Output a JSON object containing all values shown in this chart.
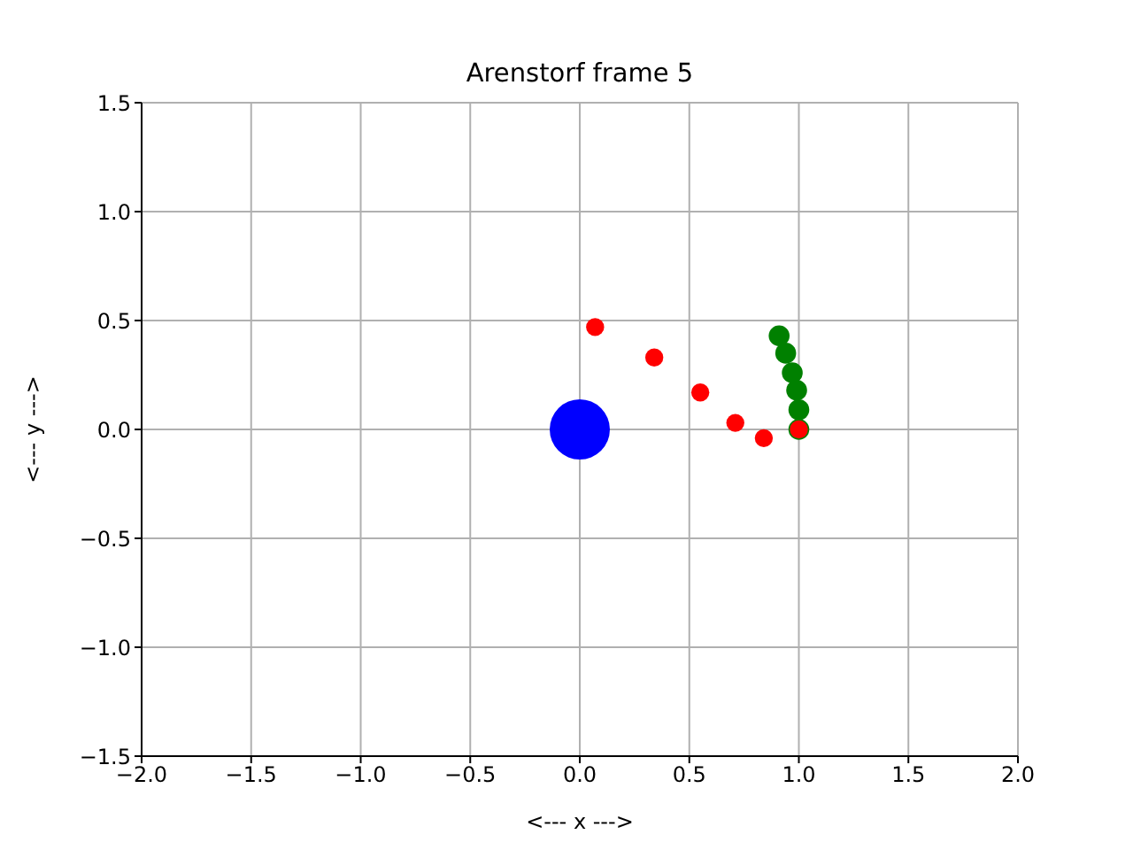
{
  "chart_data": {
    "type": "bubble",
    "title": "Arenstorf frame 5",
    "xlabel": "<---  x  --->",
    "ylabel": "<---  y  --->",
    "xlim": [
      -2,
      2
    ],
    "xticks": [
      {
        "value": -2,
        "label": "−2.0"
      },
      {
        "value": -1.5,
        "label": "−1.5"
      },
      {
        "value": -1,
        "label": "−1.0"
      },
      {
        "value": -0.5,
        "label": "−0.5"
      },
      {
        "value": 0,
        "label": "0.0"
      },
      {
        "value": 0.5,
        "label": "0.5"
      },
      {
        "value": 1,
        "label": "1.0"
      },
      {
        "value": 1.5,
        "label": "1.5"
      },
      {
        "value": 2,
        "label": "2.0"
      }
    ],
    "ylim": [
      -1.5,
      1.5
    ],
    "yticks": [
      {
        "value": -1.5,
        "label": "−1.5"
      },
      {
        "value": -1,
        "label": "−1.0"
      },
      {
        "value": -0.5,
        "label": "−0.5"
      },
      {
        "value": 0,
        "label": "0.0"
      },
      {
        "value": 0.5,
        "label": "0.5"
      },
      {
        "value": 1,
        "label": "1.0"
      },
      {
        "value": 1.5,
        "label": "1.5"
      }
    ],
    "grid": true,
    "marker": "circle",
    "series": [
      {
        "color": "#0000ff",
        "x": [
          0
        ],
        "values": [
          0
        ],
        "sizes": [
          1
        ]
      },
      {
        "color": "#008000",
        "x": [
          0.91,
          0.94,
          0.97,
          0.99,
          1.0,
          1.0
        ],
        "values": [
          0.43,
          0.35,
          0.26,
          0.18,
          0.09,
          0.0
        ],
        "sizes": [
          0.12,
          0.12,
          0.12,
          0.12,
          0.12,
          0.12
        ]
      },
      {
        "color": "#ff0000",
        "x": [
          0.07,
          0.34,
          0.55,
          0.71,
          0.84,
          1.0
        ],
        "values": [
          0.47,
          0.33,
          0.17,
          0.03,
          -0.04,
          0.0
        ],
        "sizes": [
          0.09,
          0.09,
          0.09,
          0.09,
          0.09,
          0.09
        ]
      }
    ]
  }
}
